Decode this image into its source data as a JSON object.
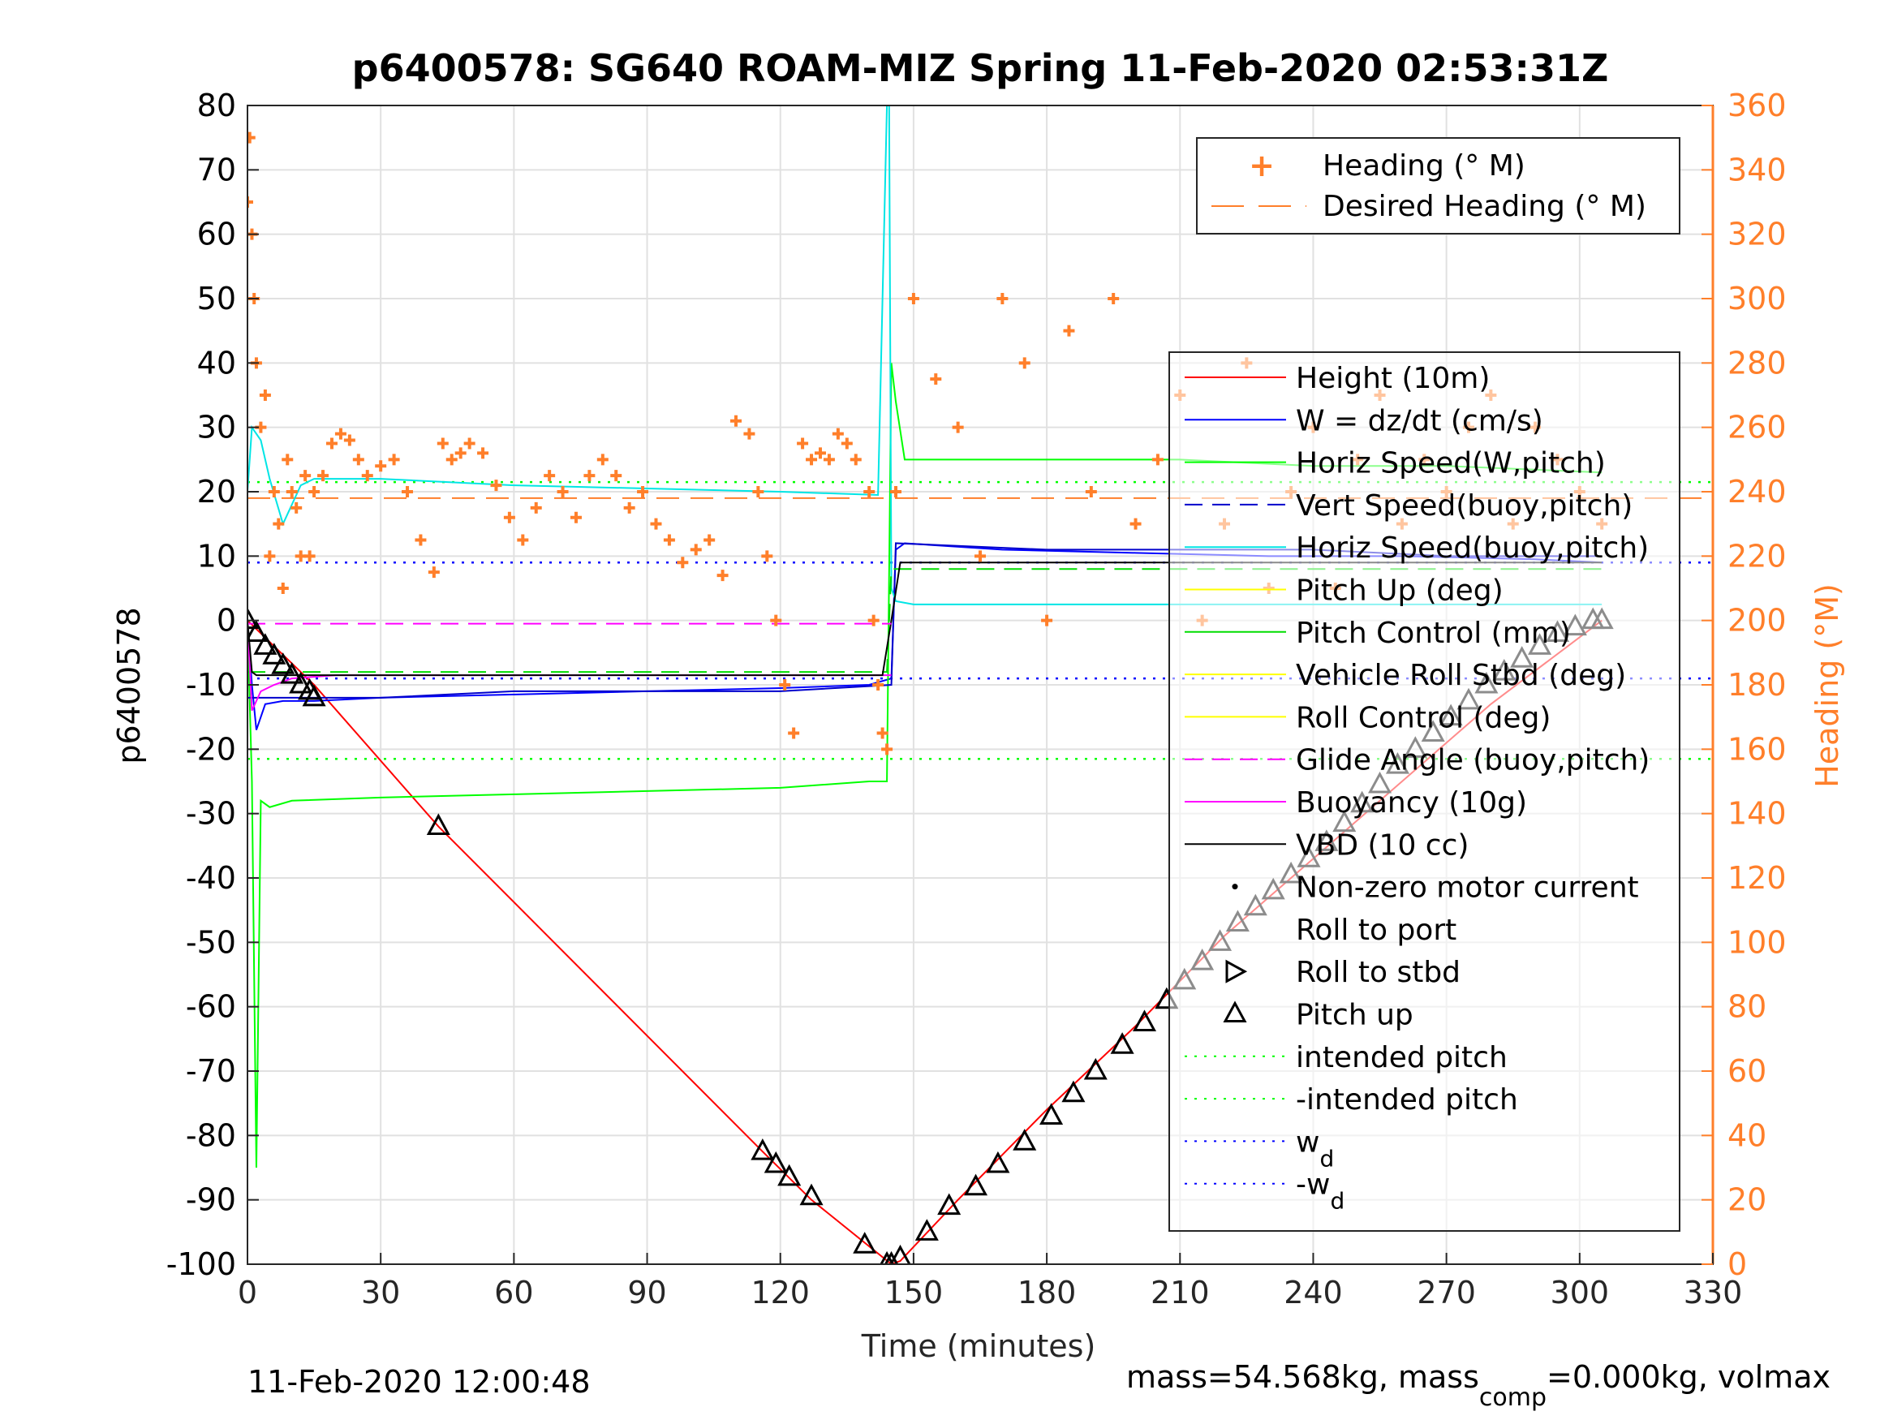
{
  "chart_data": {
    "type": "line",
    "title": "p6400578: SG640 ROAM-MIZ Spring 11-Feb-2020 02:53:31Z",
    "xlabel": "Time (minutes)",
    "ylabel_left": "p6400578",
    "ylabel_right": "Heading (°M)",
    "xlim": [
      0,
      330
    ],
    "ylim_left": [
      -100,
      80
    ],
    "ylim_right": [
      0,
      360
    ],
    "x_ticks": [
      0,
      30,
      60,
      90,
      120,
      150,
      180,
      210,
      240,
      270,
      300,
      330
    ],
    "y_ticks_left": [
      80,
      70,
      60,
      50,
      40,
      30,
      20,
      10,
      0,
      -10,
      -20,
      -30,
      -40,
      -50,
      -60,
      -70,
      -80,
      -90,
      -100
    ],
    "y_ticks_right": [
      360,
      340,
      320,
      300,
      280,
      260,
      240,
      220,
      200,
      180,
      160,
      140,
      120,
      100,
      80,
      60,
      40,
      20,
      0
    ],
    "grid": true,
    "legend_heading": [
      "Heading (° M)",
      "Desired Heading (° M)"
    ],
    "legend_main": [
      "Height (10m)",
      "W = dz/dt (cm/s)",
      "Horiz Speed(W,pitch)",
      "Vert Speed(buoy,pitch)",
      "Horiz Speed(buoy,pitch)",
      "Pitch Up (deg)",
      "Pitch Control (mm)",
      "Vehicle Roll Stbd (deg)",
      "Roll Control (deg)",
      "Glide Angle (buoy,pitch)",
      "Buoyancy (10g)",
      "VBD (10 cc)",
      "Non-zero motor current",
      "Roll to port",
      "Roll to stbd",
      "Pitch up",
      "intended pitch",
      "-intended pitch",
      "w",
      "-w"
    ],
    "legend_subscript": "d",
    "footer_left": "11-Feb-2020 12:00:48",
    "footer_right_parts": [
      "mass=54.568kg, mass",
      "comp",
      "=0.000kg, volmax"
    ],
    "series": [
      {
        "name": "Height (10m)",
        "color": "#ff0000",
        "x": [
          0,
          15,
          43,
          116,
          127,
          145,
          147,
          160,
          180,
          200,
          220,
          240,
          260,
          280,
          305
        ],
        "y": [
          0,
          -10,
          -32,
          -82.5,
          -90,
          -100,
          -99.5,
          -90,
          -76,
          -63,
          -49,
          -37,
          -25,
          -13,
          0
        ]
      },
      {
        "name": "W = dz/dt (cm/s)",
        "color": "#0000ff",
        "x": [
          0,
          1,
          2,
          4,
          8,
          15,
          30,
          60,
          90,
          120,
          140,
          145,
          146,
          148,
          170,
          200,
          230,
          260,
          290,
          305
        ],
        "y": [
          0,
          -10,
          -17,
          -13,
          -12.5,
          -12.5,
          -12,
          -11.5,
          -11,
          -10.5,
          -10,
          -9,
          11,
          12,
          11,
          10.5,
          10,
          10,
          9.5,
          9
        ]
      },
      {
        "name": "Horiz Speed(W,pitch)",
        "color": "#00ff00",
        "x": [
          0,
          1,
          2,
          3,
          5,
          10,
          30,
          60,
          90,
          120,
          140,
          144,
          145,
          146,
          148,
          180,
          210,
          240,
          270,
          305
        ],
        "y": [
          0,
          -25,
          -85,
          -28,
          -29,
          -28,
          -27.5,
          -27,
          -26.5,
          -26,
          -25,
          -25,
          40,
          34,
          25,
          25,
          25,
          24,
          24,
          23
        ]
      },
      {
        "name": "Vert Speed(buoy,pitch)",
        "color": "#0000cc",
        "x": [
          0,
          5,
          30,
          60,
          90,
          120,
          145,
          146,
          180,
          210,
          240,
          270,
          305
        ],
        "y": [
          -12,
          -12,
          -12,
          -11,
          -11,
          -11,
          -10,
          12,
          11,
          11,
          11,
          10,
          10
        ]
      },
      {
        "name": "Horiz Speed(buoy,pitch)",
        "color": "#00e5e5",
        "x": [
          0,
          1,
          3,
          5,
          8,
          12,
          15,
          30,
          60,
          90,
          120,
          142,
          144,
          144.5,
          145,
          146,
          150,
          180,
          210,
          240,
          270,
          305
        ],
        "y": [
          20,
          30,
          28,
          22,
          15,
          21,
          22,
          22,
          21,
          20.5,
          20,
          19.5,
          80,
          80,
          5,
          3,
          2.5,
          2.5,
          2.5,
          2.5,
          2.5,
          2.5
        ]
      },
      {
        "name": "Pitch Control (mm)",
        "color": "#00dd00",
        "x": [
          0,
          144,
          145,
          305
        ],
        "y": [
          -8,
          -8,
          8,
          8
        ]
      },
      {
        "name": "Glide Angle (buoy,pitch)",
        "color": "#ff00ff",
        "x": [
          0,
          1,
          3,
          6,
          10,
          20,
          60,
          100,
          140,
          145
        ],
        "y": [
          0,
          -14,
          -11,
          -10,
          -9,
          -8.5,
          -8.5,
          -8.5,
          -8.5,
          -8.5
        ]
      },
      {
        "name": "VBD (10 cc)",
        "color": "#000000",
        "x": [
          0,
          1,
          2,
          20,
          60,
          100,
          143,
          145,
          147,
          200,
          250,
          305
        ],
        "y": [
          0,
          -8,
          -8.5,
          -8.5,
          -8.5,
          -8.5,
          -8.5,
          0,
          9,
          9,
          9,
          9
        ]
      },
      {
        "name": "Glide Angle ref",
        "color": "#ff00ff",
        "x": [
          0,
          145
        ],
        "y": [
          -0.5,
          -0.5
        ]
      },
      {
        "name": "intended pitch",
        "color": "#00ff00",
        "x": [
          0,
          330
        ],
        "y": [
          21.5,
          21.5
        ]
      },
      {
        "name": "-intended pitch",
        "color": "#00ff00",
        "x": [
          0,
          330
        ],
        "y": [
          -21.5,
          -21.5
        ]
      },
      {
        "name": "w",
        "color": "#0000ff",
        "x": [
          0,
          330
        ],
        "y": [
          9,
          9
        ]
      },
      {
        "name": "-w",
        "color": "#0000ff",
        "x": [
          0,
          330
        ],
        "y": [
          -9,
          -9
        ]
      }
    ],
    "heading_series": {
      "name": "Heading (° M)",
      "color": "#ff7f2a",
      "x": [
        0,
        0.5,
        1,
        1.5,
        2,
        3,
        4,
        5,
        6,
        7,
        8,
        9,
        10,
        11,
        12,
        13,
        14,
        15,
        17,
        19,
        21,
        23,
        25,
        27,
        30,
        33,
        36,
        39,
        42,
        44,
        46,
        48,
        50,
        53,
        56,
        59,
        62,
        65,
        68,
        71,
        74,
        77,
        80,
        83,
        86,
        89,
        92,
        95,
        98,
        101,
        104,
        107,
        110,
        113,
        115,
        117,
        119,
        121,
        123,
        125,
        127,
        129,
        131,
        133,
        135,
        137,
        140,
        141,
        142,
        143,
        144,
        146,
        150,
        155,
        160,
        165,
        170,
        175,
        180,
        185,
        190,
        195,
        200,
        205,
        210,
        215,
        220,
        225,
        230,
        235,
        240,
        245,
        250,
        255,
        260,
        265,
        270,
        275,
        280,
        285,
        290,
        295,
        300,
        305
      ],
      "y": [
        330,
        350,
        320,
        300,
        280,
        260,
        270,
        220,
        240,
        230,
        210,
        250,
        240,
        235,
        220,
        245,
        220,
        240,
        245,
        255,
        258,
        256,
        250,
        245,
        248,
        250,
        240,
        225,
        215,
        255,
        250,
        252,
        255,
        252,
        242,
        232,
        225,
        235,
        245,
        240,
        232,
        245,
        250,
        245,
        235,
        240,
        230,
        225,
        218,
        222,
        225,
        214,
        262,
        258,
        240,
        220,
        200,
        180,
        165,
        255,
        250,
        252,
        250,
        258,
        255,
        250,
        240,
        200,
        180,
        165,
        160,
        240,
        300,
        275,
        260,
        220,
        300,
        280,
        200,
        290,
        240,
        300,
        230,
        250,
        270,
        200,
        230,
        280,
        210,
        240,
        260,
        210,
        250,
        270,
        230,
        250,
        240,
        260,
        270,
        230,
        260,
        250,
        240,
        230
      ]
    },
    "desired_heading": {
      "name": "Desired Heading (° M)",
      "color": "#ff7f2a",
      "x": [
        0,
        330
      ],
      "y": [
        238,
        238
      ]
    },
    "pitch_up_markers": {
      "name": "Pitch up",
      "x": [
        0,
        2,
        4,
        6,
        8,
        10,
        12,
        14,
        15,
        43,
        116,
        119,
        122,
        127,
        139,
        144,
        145,
        147,
        153,
        158,
        164,
        169,
        175,
        181,
        186,
        191,
        197,
        202,
        207,
        211,
        215,
        219,
        223,
        227,
        231,
        235,
        239,
        243,
        247,
        251,
        255,
        259,
        263,
        267,
        271,
        275,
        279,
        283,
        287,
        291,
        295,
        299,
        303,
        305
      ],
      "y": [
        0,
        -2,
        -4,
        -5.5,
        -7,
        -8.5,
        -10,
        -11,
        -12,
        -32,
        -82.5,
        -84.5,
        -86.5,
        -89.5,
        -97,
        -100,
        -100,
        -99,
        -95,
        -91,
        -88,
        -84.5,
        -81,
        -77,
        -73.5,
        -70,
        -66,
        -62.5,
        -59,
        -56,
        -53,
        -50,
        -47,
        -44.5,
        -42,
        -39.5,
        -37,
        -34.5,
        -31.5,
        -28.5,
        -25.5,
        -22.5,
        -20,
        -17.5,
        -15,
        -12.5,
        -10,
        -8,
        -6,
        -4,
        -2,
        -1,
        0,
        0
      ]
    }
  }
}
